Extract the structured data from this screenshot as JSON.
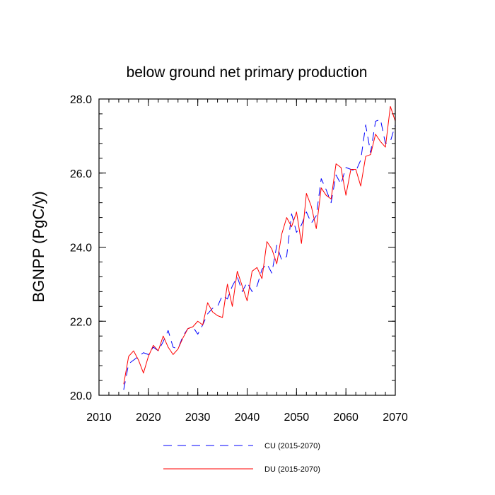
{
  "chart_data": {
    "type": "line",
    "title": "below ground net primary production",
    "xlabel": "",
    "ylabel": "BGNPP  (PgC/y)",
    "xlim": [
      2010,
      2070
    ],
    "ylim": [
      20.0,
      28.0
    ],
    "x_ticks": [
      2010,
      2020,
      2030,
      2040,
      2050,
      2060,
      2070
    ],
    "x_tick_labels": [
      "2010",
      "2020",
      "2030",
      "2040",
      "2050",
      "2060",
      "2070"
    ],
    "y_ticks": [
      20.0,
      22.0,
      24.0,
      26.0,
      28.0
    ],
    "y_tick_labels": [
      "20.0",
      "22.0",
      "24.0",
      "26.0",
      "28.0"
    ],
    "grid": false,
    "legend_position": "bottom",
    "x": [
      2015,
      2016,
      2017,
      2018,
      2019,
      2020,
      2021,
      2022,
      2023,
      2024,
      2025,
      2026,
      2027,
      2028,
      2029,
      2030,
      2031,
      2032,
      2033,
      2034,
      2035,
      2036,
      2037,
      2038,
      2039,
      2040,
      2041,
      2042,
      2043,
      2044,
      2045,
      2046,
      2047,
      2048,
      2049,
      2050,
      2051,
      2052,
      2053,
      2054,
      2055,
      2056,
      2057,
      2058,
      2059,
      2060,
      2061,
      2062,
      2063,
      2064,
      2065,
      2066,
      2067,
      2068,
      2069,
      2070
    ],
    "series": [
      {
        "name": "CU (2015-2070)",
        "color": "#0000ff",
        "style": "dashed",
        "values": [
          20.15,
          20.85,
          20.95,
          21.05,
          21.15,
          21.1,
          21.3,
          21.2,
          21.45,
          21.75,
          21.3,
          21.25,
          21.6,
          21.8,
          21.85,
          21.65,
          21.9,
          22.2,
          22.35,
          22.4,
          22.7,
          22.6,
          22.95,
          23.2,
          22.8,
          23.05,
          22.8,
          22.95,
          23.4,
          23.55,
          23.3,
          24.05,
          23.65,
          23.75,
          24.9,
          24.4,
          24.6,
          24.95,
          24.65,
          24.85,
          25.85,
          25.55,
          25.2,
          25.95,
          25.7,
          26.15,
          26.1,
          26.05,
          26.35,
          27.3,
          26.55,
          27.4,
          27.45,
          26.8,
          26.85,
          27.3
        ]
      },
      {
        "name": "DU (2015-2070)",
        "color": "#ff0000",
        "style": "solid",
        "values": [
          20.3,
          21.05,
          21.2,
          20.95,
          20.6,
          21.05,
          21.35,
          21.2,
          21.6,
          21.3,
          21.1,
          21.25,
          21.55,
          21.8,
          21.85,
          22.0,
          21.9,
          22.5,
          22.25,
          22.15,
          22.1,
          23.0,
          22.4,
          23.35,
          22.95,
          22.55,
          23.35,
          23.45,
          23.15,
          24.15,
          23.95,
          23.55,
          24.35,
          24.8,
          24.55,
          24.95,
          24.1,
          25.45,
          25.1,
          24.5,
          25.6,
          25.4,
          25.3,
          26.25,
          26.15,
          25.4,
          26.1,
          26.1,
          25.65,
          26.45,
          26.5,
          27.05,
          26.85,
          26.7,
          27.8,
          27.4
        ]
      }
    ]
  }
}
